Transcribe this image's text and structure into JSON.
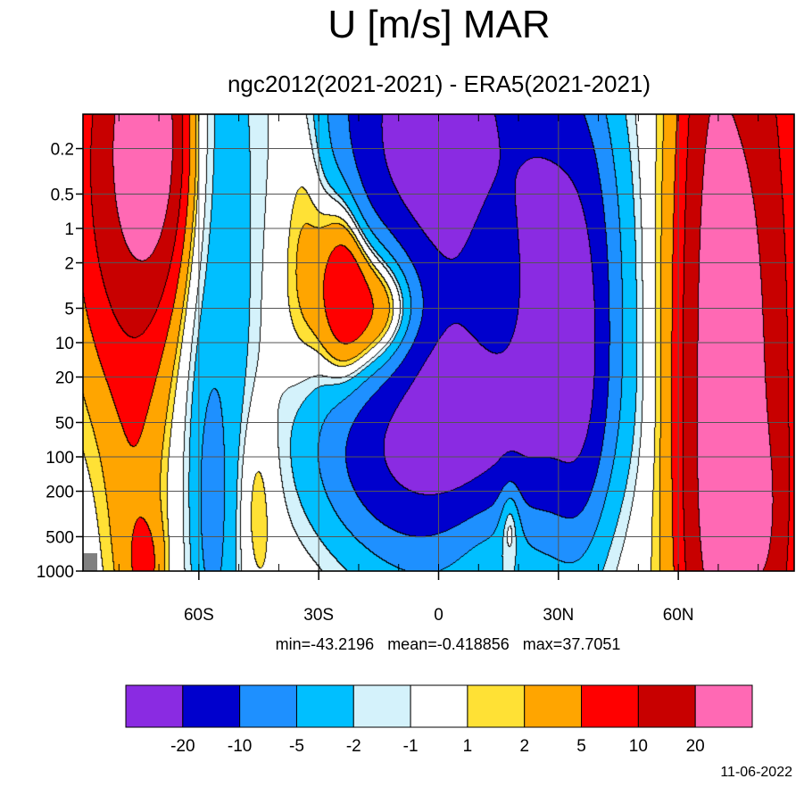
{
  "chart_data": {
    "type": "heatmap",
    "title": "U [m/s] MAR",
    "subtitle": "ngc2012(2021-2021) - ERA5(2021-2021)",
    "xlabel": "",
    "ylabel": "",
    "stats": "min=-43.2196   mean=-0.418856   max=37.7051",
    "date": "11-06-2022",
    "x_axis": {
      "range": [
        -89,
        89
      ],
      "ticks": [
        -60,
        -30,
        0,
        30,
        60
      ],
      "tick_labels": [
        "60S",
        "30S",
        "0",
        "30N",
        "60N"
      ]
    },
    "y_axis": {
      "scale": "log",
      "direction": "pressure-down",
      "range": [
        1000,
        0.1
      ],
      "ticks": [
        0.2,
        0.5,
        1,
        2,
        5,
        10,
        20,
        50,
        100,
        200,
        500,
        1000
      ],
      "tick_labels": [
        "0.2",
        "0.5",
        "1",
        "2",
        "5",
        "10",
        "20",
        "50",
        "100",
        "200",
        "500",
        "1000"
      ]
    },
    "grid": true,
    "legend_position": "bottom",
    "levels": [
      -20,
      -10,
      -5,
      -2,
      -1,
      1,
      2,
      5,
      10,
      20
    ],
    "level_labels": [
      "-20",
      "-10",
      "-5",
      "-2",
      "-1",
      "1",
      "2",
      "5",
      "10",
      "20"
    ],
    "colors": [
      "#8a2be2",
      "#0000cd",
      "#1e90ff",
      "#00bfff",
      "#d4f2fb",
      "#ffffff",
      "#ffe135",
      "#ffa500",
      "#ff0000",
      "#c80000",
      "#ff69b4"
    ],
    "features": [
      {
        "lat": -77,
        "p": 0.3,
        "value": 18,
        "sx": 9,
        "sy": 1.2
      },
      {
        "lat": -72,
        "p": 0.15,
        "value": 24,
        "sx": 5,
        "sy": 0.7
      },
      {
        "lat": -76,
        "p": 300,
        "value": 3.2,
        "sx": 5,
        "sy": 1.0
      },
      {
        "lat": -73,
        "p": 900,
        "value": 4.0,
        "sx": 3,
        "sy": 0.3
      },
      {
        "lat": -57,
        "p": 300,
        "value": -4.5,
        "sx": 3,
        "sy": 0.9
      },
      {
        "lat": -52,
        "p": 8,
        "value": -3.2,
        "sx": 5,
        "sy": 3.2
      },
      {
        "lat": -62,
        "p": 0.5,
        "value": -2.6,
        "sx": 5,
        "sy": 2.0
      },
      {
        "lat": -46,
        "p": 250,
        "value": 3.0,
        "sx": 3.5,
        "sy": 0.7
      },
      {
        "lat": -33,
        "p": 0.8,
        "value": 3.5,
        "sx": 4,
        "sy": 0.9
      },
      {
        "lat": -10,
        "p": 5.5,
        "value": 22,
        "sx": 11,
        "sy": 0.65
      },
      {
        "lat": 14,
        "p": 5.5,
        "value": 13,
        "sx": 6,
        "sy": 0.75
      },
      {
        "lat": -24,
        "p": 2.5,
        "value": 7,
        "sx": 4,
        "sy": 0.6
      },
      {
        "lat": 2,
        "p": 0.4,
        "value": -26,
        "sx": 12,
        "sy": 1.8
      },
      {
        "lat": 28,
        "p": 3,
        "value": -24,
        "sx": 10,
        "sy": 1.3
      },
      {
        "lat": 35,
        "p": 12,
        "value": -12,
        "sx": 4,
        "sy": 0.9
      },
      {
        "lat": -12,
        "p": 0.2,
        "value": -11,
        "sx": 13,
        "sy": 1.1
      },
      {
        "lat": 4,
        "p": 45,
        "value": -18,
        "sx": 18,
        "sy": 0.6
      },
      {
        "lat": 8,
        "p": 30,
        "value": -7,
        "sx": 8,
        "sy": 0.4
      },
      {
        "lat": -10,
        "p": 100,
        "value": -9,
        "sx": 13,
        "sy": 0.55
      },
      {
        "lat": 10,
        "p": 350,
        "value": 4.8,
        "sx": 12,
        "sy": 0.45
      },
      {
        "lat": 18,
        "p": 270,
        "value": 6.5,
        "sx": 2,
        "sy": 0.3
      },
      {
        "lat": 75,
        "p": 20,
        "value": 26,
        "sx": 9,
        "sy": 2.6
      },
      {
        "lat": 68,
        "p": 2,
        "value": 8,
        "sx": 4,
        "sy": 2.5
      },
      {
        "lat": 67,
        "p": 400,
        "value": 3.0,
        "sx": 4,
        "sy": 0.8
      },
      {
        "lat": 83,
        "p": 350,
        "value": 5.5,
        "sx": 3,
        "sy": 0.6
      },
      {
        "lat": -29,
        "p": 5,
        "value": -0.8,
        "sx": 4,
        "sy": 0.6
      }
    ]
  }
}
